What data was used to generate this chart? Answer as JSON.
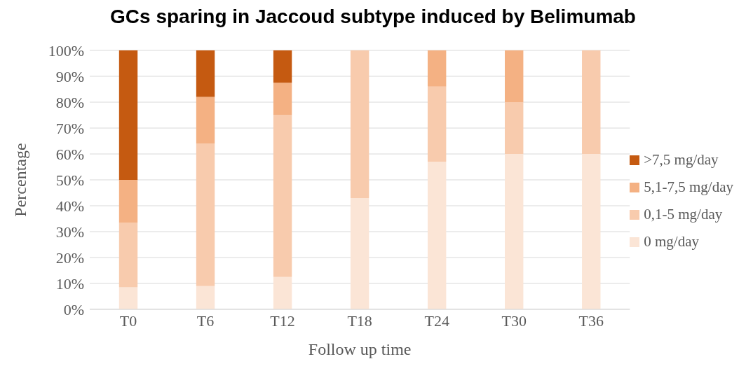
{
  "chart_data": {
    "type": "bar",
    "title": "GCs sparing in Jaccoud subtype induced by Belimumab",
    "xlabel": "Follow up time",
    "ylabel": "Percentage",
    "categories": [
      "T0",
      "T6",
      "T12",
      "T18",
      "T24",
      "T30",
      "T36"
    ],
    "stacked": true,
    "series": [
      {
        "name": "0 mg/day",
        "color": "#fbe5d6",
        "values": [
          8.5,
          9,
          12.5,
          43,
          57,
          60,
          60
        ]
      },
      {
        "name": "0,1-5 mg/day",
        "color": "#f8cbad",
        "values": [
          25,
          55,
          62.5,
          57,
          29,
          20,
          40
        ]
      },
      {
        "name": "5,1-7,5 mg/day",
        "color": "#f4b183",
        "values": [
          16.5,
          18,
          12.5,
          0,
          14,
          20,
          0
        ]
      },
      {
        "name": ">7,5 mg/day",
        "color": "#c55a11",
        "values": [
          50,
          18,
          12.5,
          0,
          0,
          0,
          0
        ]
      }
    ],
    "ylim": [
      0,
      100
    ],
    "yticks": [
      {
        "value": 0,
        "label": "0%"
      },
      {
        "value": 10,
        "label": "10%"
      },
      {
        "value": 20,
        "label": "20%"
      },
      {
        "value": 30,
        "label": "30%"
      },
      {
        "value": 40,
        "label": "40%"
      },
      {
        "value": 50,
        "label": "50%"
      },
      {
        "value": 60,
        "label": "60%"
      },
      {
        "value": 70,
        "label": "70%"
      },
      {
        "value": 80,
        "label": "80%"
      },
      {
        "value": 90,
        "label": "90%"
      },
      {
        "value": 100,
        "label": "100%"
      }
    ],
    "grid": "y",
    "legend": "right"
  }
}
